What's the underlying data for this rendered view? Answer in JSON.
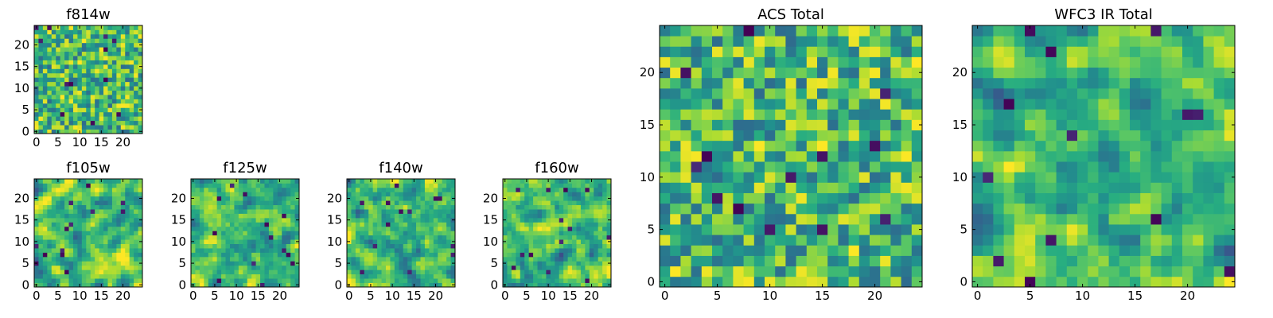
{
  "chart_data": [
    {
      "id": "f814w",
      "type": "heatmap",
      "title": "f814w",
      "grid_size": 25,
      "xlim": [
        0,
        24
      ],
      "ylim": [
        0,
        24
      ],
      "xticks": [
        0,
        5,
        10,
        15,
        20
      ],
      "yticks": [
        0,
        5,
        10,
        15,
        20
      ],
      "colormap": "viridis",
      "seed": 814,
      "style": "noise"
    },
    {
      "id": "f105w",
      "type": "heatmap",
      "title": "f105w",
      "grid_size": 25,
      "xlim": [
        0,
        24
      ],
      "ylim": [
        0,
        24
      ],
      "xticks": [
        0,
        5,
        10,
        15,
        20
      ],
      "yticks": [
        0,
        5,
        10,
        15,
        20
      ],
      "colormap": "viridis",
      "seed": 105,
      "style": "smooth"
    },
    {
      "id": "f125w",
      "type": "heatmap",
      "title": "f125w",
      "grid_size": 25,
      "xlim": [
        0,
        24
      ],
      "ylim": [
        0,
        24
      ],
      "xticks": [
        0,
        5,
        10,
        15,
        20
      ],
      "yticks": [
        0,
        5,
        10,
        15,
        20
      ],
      "colormap": "viridis",
      "seed": 125,
      "style": "smooth"
    },
    {
      "id": "f140w",
      "type": "heatmap",
      "title": "f140w",
      "grid_size": 25,
      "xlim": [
        0,
        24
      ],
      "ylim": [
        0,
        24
      ],
      "xticks": [
        0,
        5,
        10,
        15,
        20
      ],
      "yticks": [
        0,
        5,
        10,
        15,
        20
      ],
      "colormap": "viridis",
      "seed": 140,
      "style": "smooth"
    },
    {
      "id": "f160w",
      "type": "heatmap",
      "title": "f160w",
      "grid_size": 25,
      "xlim": [
        0,
        24
      ],
      "ylim": [
        0,
        24
      ],
      "xticks": [
        0,
        5,
        10,
        15,
        20
      ],
      "yticks": [
        0,
        5,
        10,
        15,
        20
      ],
      "colormap": "viridis",
      "seed": 160,
      "style": "smooth"
    },
    {
      "id": "acs-total",
      "type": "heatmap",
      "title": "ACS Total",
      "grid_size": 25,
      "xlim": [
        0,
        24
      ],
      "ylim": [
        0,
        24
      ],
      "xticks": [
        0,
        5,
        10,
        15,
        20
      ],
      "yticks": [
        0,
        5,
        10,
        15,
        20
      ],
      "colormap": "viridis",
      "seed": 7,
      "style": "noise"
    },
    {
      "id": "wfc3-ir-total",
      "type": "heatmap",
      "title": "WFC3 IR Total",
      "grid_size": 25,
      "xlim": [
        0,
        24
      ],
      "ylim": [
        0,
        24
      ],
      "xticks": [
        0,
        5,
        10,
        15,
        20
      ],
      "yticks": [
        0,
        5,
        10,
        15,
        20
      ],
      "colormap": "viridis",
      "seed": 33,
      "style": "smooth"
    }
  ]
}
